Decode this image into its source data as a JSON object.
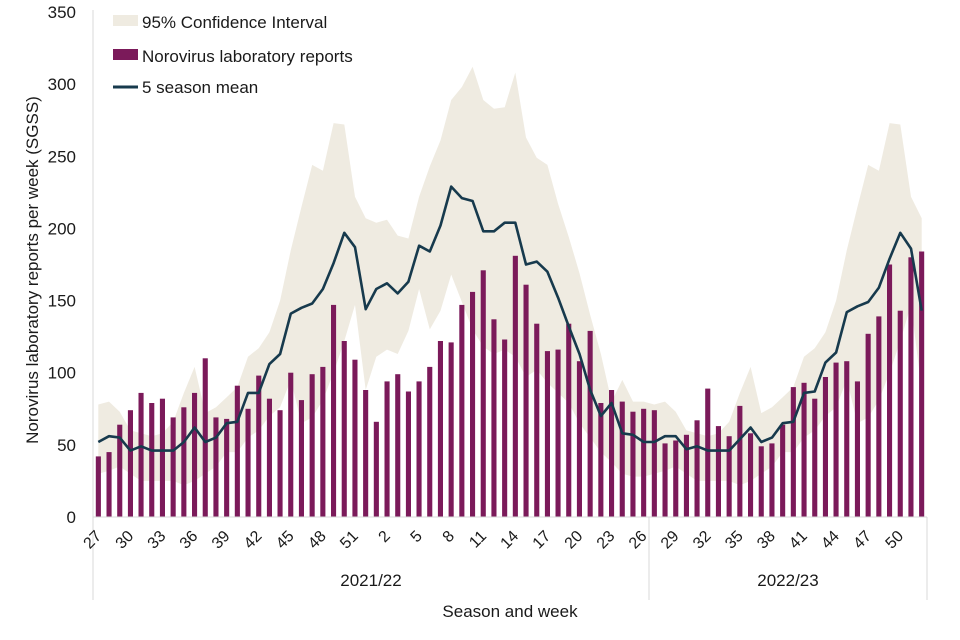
{
  "chart_data": {
    "type": "bar",
    "title": "",
    "xlabel": "Season and week",
    "ylabel": "Norovirus laboratory reports per week (SGSS)",
    "ylim": [
      0,
      350
    ],
    "yticks": [
      0,
      50,
      100,
      150,
      200,
      250,
      300,
      350
    ],
    "grid": false,
    "legend_position": "top-left",
    "legend": [
      {
        "name": "95% Confidence Interval",
        "kind": "area",
        "color": "#efebe1"
      },
      {
        "name": "Norovirus laboratory reports",
        "kind": "bar",
        "color": "#7b1a5a"
      },
      {
        "name": "5 season mean",
        "kind": "line",
        "color": "#173a4d"
      }
    ],
    "seasons": [
      {
        "label": "2021/22",
        "weeks": [
          27,
          28,
          29,
          30,
          31,
          32,
          33,
          34,
          35,
          36,
          37,
          38,
          39,
          40,
          41,
          42,
          43,
          44,
          45,
          46,
          47,
          48,
          49,
          50,
          51,
          52,
          1,
          2,
          3,
          4,
          5,
          6,
          7,
          8,
          9,
          10,
          11,
          12,
          13,
          14,
          15,
          16,
          17,
          18,
          19,
          20,
          21,
          22,
          23,
          24,
          25,
          26
        ]
      },
      {
        "label": "2022/23",
        "weeks": [
          27,
          28,
          29,
          30,
          31,
          32,
          33,
          34,
          35,
          36,
          37,
          38,
          39,
          40,
          41,
          42,
          43,
          44,
          45,
          46,
          47,
          48,
          49,
          50,
          51,
          52
        ]
      }
    ],
    "tick_labels": [
      "27",
      "30",
      "33",
      "36",
      "39",
      "42",
      "45",
      "48",
      "51",
      "2",
      "5",
      "8",
      "11",
      "14",
      "17",
      "20",
      "23",
      "26",
      "29",
      "32",
      "35",
      "38",
      "41",
      "44",
      "47",
      "50"
    ],
    "tick_every": 3,
    "series": [
      {
        "name": "Norovirus laboratory reports",
        "type": "bar",
        "values": [
          42,
          45,
          64,
          74,
          86,
          79,
          82,
          69,
          76,
          86,
          110,
          69,
          68,
          91,
          75,
          98,
          82,
          74,
          100,
          81,
          99,
          104,
          147,
          122,
          109,
          88,
          66,
          94,
          99,
          87,
          94,
          104,
          122,
          121,
          147,
          156,
          171,
          137,
          123,
          181,
          161,
          134,
          115,
          116,
          134,
          108,
          129,
          79,
          88,
          80,
          73,
          75,
          74,
          51,
          53,
          57,
          67,
          89,
          63,
          56,
          77,
          58,
          49,
          51,
          64,
          90,
          93,
          82,
          97,
          107,
          108,
          94,
          127,
          139,
          175,
          143,
          180,
          184
        ]
      },
      {
        "name": "5 season mean",
        "type": "line",
        "values": [
          52,
          56,
          55,
          46,
          49,
          46,
          46,
          46,
          52,
          62,
          52,
          55,
          65,
          66,
          86,
          86,
          106,
          113,
          141,
          145,
          148,
          158,
          176,
          197,
          187,
          144,
          158,
          162,
          155,
          163,
          188,
          184,
          202,
          229,
          221,
          219,
          198,
          198,
          204,
          204,
          175,
          177,
          170,
          152,
          132,
          113,
          88,
          70,
          79,
          58,
          57,
          52,
          52,
          56,
          56,
          47,
          49,
          46,
          46,
          46,
          54,
          62,
          52,
          55,
          65,
          66,
          86,
          87,
          107,
          114,
          142,
          146,
          149,
          159,
          179,
          197,
          186,
          143
        ]
      },
      {
        "name": "95% Confidence Interval",
        "type": "area",
        "upper": [
          78,
          80,
          73,
          60,
          58,
          56,
          58,
          66,
          86,
          104,
          72,
          76,
          83,
          90,
          111,
          117,
          128,
          150,
          185,
          215,
          244,
          240,
          273,
          272,
          222,
          207,
          204,
          206,
          195,
          193,
          222,
          243,
          261,
          289,
          298,
          312,
          289,
          283,
          284,
          308,
          263,
          249,
          244,
          217,
          194,
          169,
          140,
          113,
          80,
          95,
          80,
          80,
          78,
          80,
          73,
          60,
          58,
          56,
          58,
          66,
          86,
          104,
          72,
          76,
          83,
          90,
          111,
          117,
          128,
          150,
          185,
          215,
          244,
          240,
          273,
          272,
          222,
          207
        ],
        "lower": [
          30,
          32,
          35,
          30,
          25,
          25,
          25,
          25,
          22,
          25,
          30,
          35,
          45,
          45,
          55,
          60,
          70,
          76,
          95,
          65,
          69,
          81,
          100,
          122,
          147,
          88,
          111,
          116,
          113,
          129,
          158,
          130,
          143,
          168,
          149,
          130,
          118,
          113,
          116,
          111,
          97,
          102,
          93,
          86,
          79,
          65,
          55,
          45,
          38,
          30,
          28,
          28,
          30,
          32,
          35,
          30,
          25,
          25,
          25,
          25,
          22,
          25,
          30,
          35,
          45,
          45,
          55,
          60,
          70,
          76,
          95,
          65,
          69,
          81,
          100,
          122,
          147,
          88
        ]
      }
    ]
  }
}
